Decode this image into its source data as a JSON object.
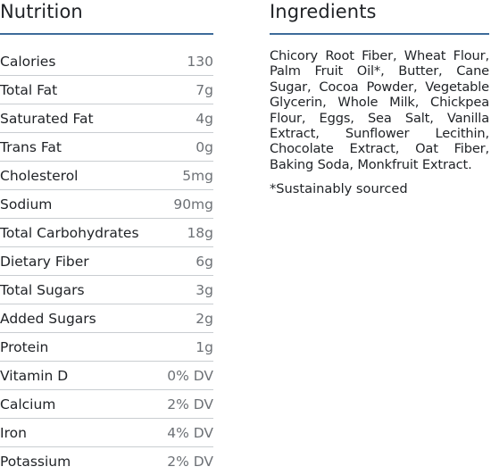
{
  "nutrition": {
    "heading": "Nutrition",
    "rows": [
      {
        "label": "Calories",
        "value": "130"
      },
      {
        "label": "Total Fat",
        "value": "7g"
      },
      {
        "label": "Saturated Fat",
        "value": "4g"
      },
      {
        "label": "Trans Fat",
        "value": "0g"
      },
      {
        "label": "Cholesterol",
        "value": "5mg"
      },
      {
        "label": "Sodium",
        "value": "90mg"
      },
      {
        "label": "Total Carbohydrates",
        "value": "18g"
      },
      {
        "label": "Dietary Fiber",
        "value": "6g"
      },
      {
        "label": "Total Sugars",
        "value": "3g"
      },
      {
        "label": "Added Sugars",
        "value": "2g"
      },
      {
        "label": "Protein",
        "value": "1g"
      },
      {
        "label": "Vitamin D",
        "value": "0% DV"
      },
      {
        "label": "Calcium",
        "value": "2% DV"
      },
      {
        "label": "Iron",
        "value": "4% DV"
      },
      {
        "label": "Potassium",
        "value": "2% DV"
      }
    ]
  },
  "ingredients": {
    "heading": "Ingredients",
    "text": "Chicory Root Fiber, Wheat Flour, Palm Fruit Oil*, Butter, Cane Sugar, Cocoa Powder, Vegetable Glycerin, Whole Milk, Chickpea Flour, Eggs, Sea Salt, Vanilla Extract, Sunflower Lecithin, Chocolate Extract, Oat Fiber, Baking Soda, Monkfruit Extract.",
    "footnote": "*Sustainably sourced"
  },
  "colors": {
    "accent_rule": "#3d6b9a",
    "row_divider": "#c9cdd1",
    "text": "#1f2226",
    "value_text": "#6d7176"
  }
}
